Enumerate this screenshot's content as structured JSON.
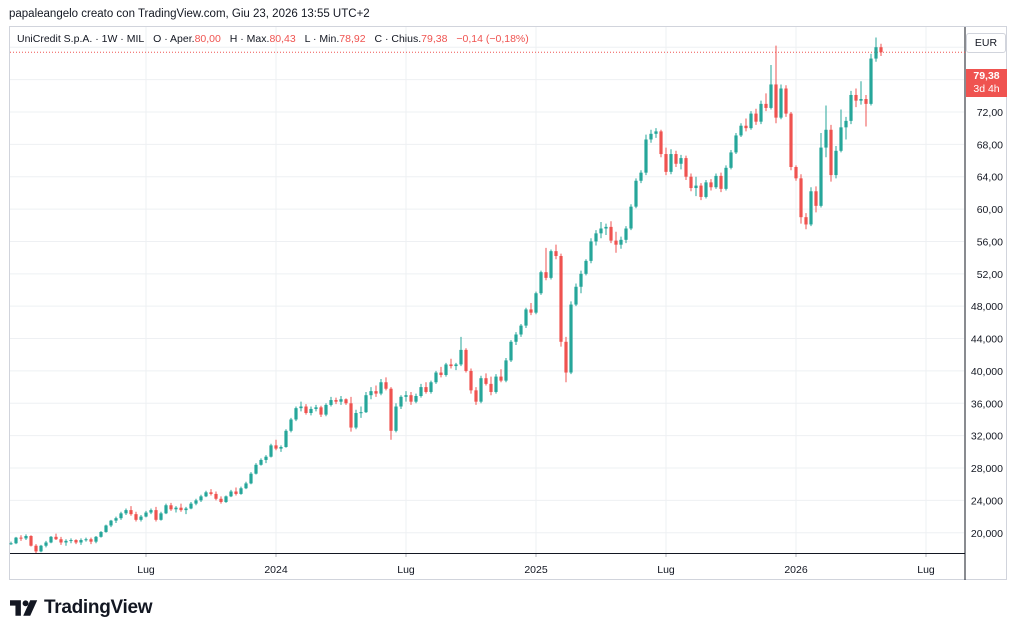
{
  "header": {
    "created_by": "papaleangelo creato con TradingView.com, Giu 23, 2026 13:55 UTC+2"
  },
  "legend": {
    "symbol": "UniCredit S.p.A. · 1W · MIL",
    "open_label": "O · Aper.",
    "open": "80,00",
    "high_label": "H · Max.",
    "high": "80,43",
    "low_label": "L · Min.",
    "low": "78,92",
    "close_label": "C · Chius.",
    "close": "79,38",
    "change": "−0,14 (−0,18%)"
  },
  "currency": "EUR",
  "last_price": {
    "value": "79,38",
    "countdown": "3d 4h"
  },
  "brand": "TradingView",
  "colors": {
    "up": "#26a69a",
    "down": "#ef5350",
    "grid": "#eef0f3",
    "price_line": "#ef5350"
  },
  "chart_data": {
    "type": "candlestick",
    "title": "UniCredit S.p.A. · 1W · MIL",
    "ylim": [
      17.5,
      82.5
    ],
    "y_ticks": [
      "20,000",
      "24,000",
      "28,000",
      "32,000",
      "36,000",
      "40,000",
      "44,000",
      "48,000",
      "52,00",
      "56,00",
      "60,00",
      "64,00",
      "68,00",
      "72,00",
      "76,00",
      "80,00"
    ],
    "y_tick_values": [
      20,
      24,
      28,
      32,
      36,
      40,
      44,
      48,
      52,
      56,
      60,
      64,
      68,
      72,
      76,
      80
    ],
    "x_ticks": [
      "Lug",
      "2024",
      "Lug",
      "2025",
      "Lug",
      "2026",
      "Lug"
    ],
    "x_tick_weeks": [
      27,
      53,
      79,
      105,
      131,
      157,
      183
    ],
    "grid": true,
    "price_line": 79.38,
    "candles": [
      [
        0,
        18.6,
        18.9,
        18.5,
        18.7
      ],
      [
        1,
        18.7,
        19.5,
        18.6,
        19.4
      ],
      [
        2,
        19.4,
        19.7,
        19.0,
        19.3
      ],
      [
        3,
        19.3,
        19.8,
        19.1,
        19.6
      ],
      [
        4,
        19.6,
        19.7,
        18.3,
        18.4
      ],
      [
        5,
        18.4,
        18.6,
        17.5,
        17.7
      ],
      [
        6,
        17.7,
        18.5,
        17.6,
        18.4
      ],
      [
        7,
        18.4,
        19.0,
        18.2,
        18.8
      ],
      [
        8,
        18.8,
        19.6,
        18.7,
        19.5
      ],
      [
        9,
        19.5,
        19.9,
        19.1,
        19.2
      ],
      [
        10,
        19.2,
        19.5,
        18.5,
        18.8
      ],
      [
        11,
        18.8,
        19.2,
        18.4,
        19.0
      ],
      [
        12,
        19.0,
        19.3,
        18.7,
        19.1
      ],
      [
        13,
        19.1,
        19.2,
        18.6,
        18.8
      ],
      [
        14,
        18.8,
        19.3,
        18.5,
        19.1
      ],
      [
        15,
        19.1,
        19.4,
        18.9,
        19.2
      ],
      [
        16,
        19.2,
        19.4,
        18.6,
        18.9
      ],
      [
        17,
        18.9,
        19.6,
        18.7,
        19.5
      ],
      [
        18,
        19.5,
        20.2,
        19.4,
        20.1
      ],
      [
        19,
        20.1,
        21.0,
        20.0,
        20.9
      ],
      [
        20,
        20.9,
        21.6,
        20.7,
        21.5
      ],
      [
        21,
        21.5,
        22.0,
        21.2,
        21.8
      ],
      [
        22,
        21.8,
        22.6,
        21.6,
        22.4
      ],
      [
        23,
        22.4,
        23.0,
        22.2,
        22.8
      ],
      [
        24,
        22.8,
        23.3,
        22.1,
        22.3
      ],
      [
        25,
        22.3,
        22.6,
        21.4,
        21.6
      ],
      [
        26,
        21.6,
        22.2,
        21.4,
        22.0
      ],
      [
        27,
        22.0,
        22.7,
        21.9,
        22.5
      ],
      [
        28,
        22.5,
        23.0,
        22.3,
        22.8
      ],
      [
        29,
        22.8,
        23.2,
        21.4,
        21.6
      ],
      [
        30,
        21.6,
        22.6,
        21.5,
        22.4
      ],
      [
        31,
        22.4,
        23.6,
        22.3,
        23.4
      ],
      [
        32,
        23.4,
        23.7,
        22.7,
        22.9
      ],
      [
        33,
        22.9,
        23.3,
        22.5,
        23.1
      ],
      [
        34,
        23.1,
        23.6,
        22.6,
        22.8
      ],
      [
        35,
        22.8,
        23.2,
        22.3,
        23.0
      ],
      [
        36,
        23.0,
        23.8,
        22.9,
        23.6
      ],
      [
        37,
        23.6,
        24.2,
        23.4,
        24.0
      ],
      [
        38,
        24.0,
        24.7,
        23.8,
        24.5
      ],
      [
        39,
        24.5,
        25.2,
        24.4,
        25.0
      ],
      [
        40,
        25.0,
        25.4,
        24.6,
        24.8
      ],
      [
        41,
        24.8,
        25.1,
        24.0,
        24.2
      ],
      [
        42,
        24.2,
        24.5,
        23.6,
        23.8
      ],
      [
        43,
        23.8,
        24.6,
        23.7,
        24.5
      ],
      [
        44,
        24.5,
        25.3,
        24.4,
        25.1
      ],
      [
        45,
        25.1,
        25.6,
        24.6,
        24.8
      ],
      [
        46,
        24.8,
        25.7,
        24.7,
        25.5
      ],
      [
        47,
        25.5,
        26.3,
        25.4,
        26.1
      ],
      [
        48,
        26.1,
        27.5,
        26.0,
        27.3
      ],
      [
        49,
        27.3,
        28.6,
        27.2,
        28.4
      ],
      [
        50,
        28.4,
        29.2,
        28.3,
        29.0
      ],
      [
        51,
        29.0,
        29.6,
        28.6,
        29.4
      ],
      [
        52,
        29.4,
        31.0,
        29.3,
        30.8
      ],
      [
        53,
        30.8,
        31.5,
        30.2,
        30.4
      ],
      [
        54,
        30.4,
        30.8,
        30.0,
        30.6
      ],
      [
        55,
        30.6,
        32.8,
        30.5,
        32.6
      ],
      [
        56,
        32.6,
        34.2,
        32.4,
        34.0
      ],
      [
        57,
        34.0,
        35.6,
        33.8,
        35.4
      ],
      [
        58,
        35.4,
        36.2,
        35.0,
        35.6
      ],
      [
        59,
        35.6,
        35.9,
        34.6,
        34.8
      ],
      [
        60,
        34.8,
        35.6,
        34.5,
        35.3
      ],
      [
        61,
        35.3,
        35.8,
        35.0,
        35.5
      ],
      [
        62,
        35.5,
        35.7,
        34.3,
        34.6
      ],
      [
        63,
        34.6,
        36.0,
        34.4,
        35.8
      ],
      [
        64,
        35.8,
        36.8,
        35.6,
        36.4
      ],
      [
        65,
        36.4,
        36.7,
        35.9,
        36.2
      ],
      [
        66,
        36.2,
        36.9,
        35.8,
        36.5
      ],
      [
        67,
        36.5,
        36.6,
        35.8,
        36.0
      ],
      [
        68,
        36.0,
        36.8,
        32.5,
        33.0
      ],
      [
        69,
        33.0,
        35.2,
        32.8,
        34.8
      ],
      [
        70,
        34.8,
        35.6,
        34.2,
        34.9
      ],
      [
        71,
        34.9,
        37.4,
        34.8,
        37.0
      ],
      [
        72,
        37.0,
        38.0,
        36.5,
        37.5
      ],
      [
        73,
        37.5,
        38.2,
        36.8,
        37.2
      ],
      [
        74,
        37.2,
        39.0,
        37.0,
        38.6
      ],
      [
        75,
        38.6,
        39.2,
        37.6,
        37.8
      ],
      [
        76,
        37.8,
        38.0,
        31.5,
        32.6
      ],
      [
        77,
        32.6,
        36.0,
        32.4,
        35.6
      ],
      [
        78,
        35.6,
        37.0,
        35.3,
        36.8
      ],
      [
        79,
        36.8,
        37.5,
        36.2,
        37.0
      ],
      [
        80,
        37.0,
        37.4,
        35.8,
        36.2
      ],
      [
        81,
        36.2,
        37.2,
        36.0,
        36.9
      ],
      [
        82,
        36.9,
        38.4,
        36.7,
        38.0
      ],
      [
        83,
        38.0,
        38.6,
        37.2,
        37.4
      ],
      [
        84,
        37.4,
        38.8,
        37.2,
        38.6
      ],
      [
        85,
        38.6,
        40.0,
        38.4,
        39.8
      ],
      [
        86,
        39.8,
        40.5,
        39.2,
        39.5
      ],
      [
        87,
        39.5,
        41.0,
        39.3,
        40.8
      ],
      [
        88,
        40.8,
        41.5,
        40.3,
        40.6
      ],
      [
        89,
        40.6,
        41.0,
        40.1,
        40.8
      ],
      [
        90,
        40.8,
        44.2,
        40.6,
        42.6
      ],
      [
        91,
        42.6,
        42.8,
        39.8,
        40.0
      ],
      [
        92,
        40.0,
        40.3,
        37.2,
        37.6
      ],
      [
        93,
        37.6,
        38.0,
        35.8,
        36.2
      ],
      [
        94,
        36.2,
        39.4,
        36.0,
        39.1
      ],
      [
        95,
        39.1,
        39.7,
        38.2,
        38.4
      ],
      [
        96,
        38.4,
        39.3,
        37.0,
        37.4
      ],
      [
        97,
        37.4,
        39.6,
        37.2,
        39.3
      ],
      [
        98,
        39.3,
        40.2,
        38.6,
        38.8
      ],
      [
        99,
        38.8,
        41.6,
        38.6,
        41.3
      ],
      [
        100,
        41.3,
        43.8,
        41.1,
        43.6
      ],
      [
        101,
        43.6,
        44.8,
        43.2,
        44.5
      ],
      [
        102,
        44.5,
        45.8,
        44.2,
        45.6
      ],
      [
        103,
        45.6,
        47.8,
        45.3,
        47.6
      ],
      [
        104,
        47.6,
        48.4,
        46.9,
        47.2
      ],
      [
        105,
        47.2,
        49.8,
        47.0,
        49.6
      ],
      [
        106,
        49.6,
        52.4,
        49.4,
        52.2
      ],
      [
        107,
        52.2,
        55.2,
        51.2,
        51.5
      ],
      [
        108,
        51.5,
        55.0,
        51.3,
        54.8
      ],
      [
        109,
        54.8,
        55.6,
        53.8,
        54.2
      ],
      [
        110,
        54.2,
        54.5,
        43.0,
        43.6
      ],
      [
        111,
        43.6,
        44.2,
        38.6,
        39.8
      ],
      [
        112,
        39.8,
        48.6,
        39.6,
        48.2
      ],
      [
        113,
        48.2,
        50.8,
        48.0,
        50.4
      ],
      [
        114,
        50.4,
        52.4,
        49.6,
        52.0
      ],
      [
        115,
        52.0,
        53.8,
        51.8,
        53.6
      ],
      [
        116,
        53.6,
        56.4,
        53.3,
        56.0
      ],
      [
        117,
        56.0,
        57.4,
        55.5,
        57.0
      ],
      [
        118,
        57.0,
        58.4,
        56.4,
        57.6
      ],
      [
        119,
        57.6,
        58.2,
        56.8,
        57.8
      ],
      [
        120,
        57.8,
        58.5,
        55.8,
        56.1
      ],
      [
        121,
        56.1,
        57.2,
        54.6,
        55.6
      ],
      [
        122,
        55.6,
        56.6,
        55.1,
        56.2
      ],
      [
        123,
        56.2,
        57.9,
        55.8,
        57.6
      ],
      [
        124,
        57.6,
        60.6,
        57.4,
        60.3
      ],
      [
        125,
        60.3,
        63.8,
        60.1,
        63.5
      ],
      [
        126,
        63.5,
        64.8,
        63.2,
        64.5
      ],
      [
        127,
        64.5,
        69.2,
        64.2,
        68.6
      ],
      [
        128,
        68.6,
        69.8,
        68.2,
        69.3
      ],
      [
        129,
        69.3,
        70.0,
        68.8,
        69.6
      ],
      [
        130,
        69.6,
        69.8,
        66.4,
        66.8
      ],
      [
        131,
        66.8,
        67.6,
        64.2,
        64.6
      ],
      [
        132,
        64.6,
        67.4,
        64.3,
        66.8
      ],
      [
        133,
        66.8,
        67.2,
        65.2,
        65.6
      ],
      [
        134,
        65.6,
        66.7,
        64.9,
        66.3
      ],
      [
        135,
        66.3,
        66.6,
        63.6,
        64.0
      ],
      [
        136,
        64.0,
        64.4,
        62.2,
        62.6
      ],
      [
        137,
        62.6,
        64.0,
        61.6,
        62.9
      ],
      [
        138,
        62.9,
        63.2,
        61.1,
        61.5
      ],
      [
        139,
        61.5,
        63.6,
        61.3,
        63.3
      ],
      [
        140,
        63.3,
        63.7,
        62.3,
        62.7
      ],
      [
        141,
        62.7,
        64.4,
        62.5,
        64.1
      ],
      [
        142,
        64.1,
        64.5,
        62.1,
        62.5
      ],
      [
        143,
        62.5,
        65.4,
        62.3,
        65.1
      ],
      [
        144,
        65.1,
        67.3,
        64.9,
        67.0
      ],
      [
        145,
        67.0,
        69.4,
        66.8,
        69.1
      ],
      [
        146,
        69.1,
        70.6,
        68.9,
        70.3
      ],
      [
        147,
        70.3,
        71.2,
        69.6,
        70.0
      ],
      [
        148,
        70.0,
        72.1,
        69.8,
        71.8
      ],
      [
        149,
        71.8,
        72.4,
        70.4,
        70.8
      ],
      [
        150,
        70.8,
        73.4,
        70.5,
        73.0
      ],
      [
        151,
        73.0,
        74.3,
        72.1,
        72.5
      ],
      [
        152,
        72.5,
        77.8,
        72.3,
        75.4
      ],
      [
        153,
        75.4,
        80.2,
        70.6,
        71.3
      ],
      [
        154,
        71.3,
        75.4,
        71.1,
        74.9
      ],
      [
        155,
        74.9,
        75.3,
        71.4,
        71.8
      ],
      [
        156,
        71.8,
        72.0,
        64.8,
        65.2
      ],
      [
        157,
        65.2,
        65.4,
        63.5,
        63.8
      ],
      [
        158,
        63.8,
        64.3,
        58.2,
        59.0
      ],
      [
        159,
        59.0,
        59.5,
        57.5,
        58.1
      ],
      [
        160,
        58.1,
        62.7,
        57.9,
        62.2
      ],
      [
        161,
        62.2,
        62.8,
        59.6,
        60.4
      ],
      [
        162,
        60.4,
        69.4,
        60.2,
        67.6
      ],
      [
        163,
        67.6,
        72.8,
        66.4,
        69.8
      ],
      [
        164,
        69.8,
        70.4,
        63.4,
        64.2
      ],
      [
        165,
        64.2,
        67.8,
        63.8,
        67.2
      ],
      [
        166,
        67.2,
        72.3,
        67.0,
        70.1
      ],
      [
        167,
        70.1,
        71.4,
        68.6,
        70.9
      ],
      [
        168,
        70.9,
        74.6,
        70.5,
        74.1
      ],
      [
        169,
        74.1,
        74.9,
        72.6,
        73.4
      ],
      [
        170,
        73.4,
        75.8,
        72.9,
        73.6
      ],
      [
        171,
        73.6,
        74.1,
        70.2,
        73.0
      ],
      [
        172,
        73.0,
        79.2,
        72.8,
        78.6
      ],
      [
        173,
        78.6,
        81.2,
        78.2,
        80.0
      ],
      [
        174,
        80.0,
        80.43,
        78.92,
        79.38
      ]
    ]
  }
}
